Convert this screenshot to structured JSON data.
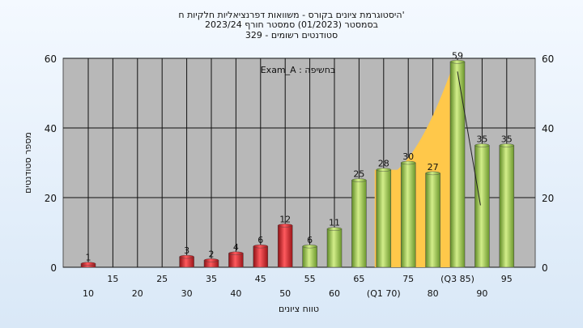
{
  "titles": [
    "'היסטוגרמת ציונים בקורס - משוואות דפרנציאליות חלקיות ח",
    "בסמסטר  (01/2023)  סמסטר חורף 2023/24",
    "סטודנטים רשומים - 329"
  ],
  "chart_data": {
    "type": "bar",
    "xlabel": "טווח ציונים",
    "ylabel": "מספר סטודנטים",
    "annotation": "בחשיפה : Exam_A",
    "ylim": [
      0,
      60
    ],
    "y_ticks": [
      "0",
      "20",
      "40",
      "60"
    ],
    "categories": [
      "10",
      "15",
      "20",
      "25",
      "30",
      "35",
      "40",
      "45",
      "50",
      "55",
      "60",
      "65",
      "(Q1 70)",
      "75",
      "80",
      "(Q3 85)",
      "90",
      "95"
    ],
    "values": [
      1,
      0,
      0,
      0,
      3,
      2,
      4,
      6,
      12,
      6,
      11,
      25,
      28,
      30,
      27,
      59,
      35,
      35
    ],
    "bar_colors": [
      "red",
      "red",
      "red",
      "red",
      "red",
      "red",
      "red",
      "red",
      "red",
      "green",
      "green",
      "green",
      "green",
      "green",
      "green",
      "green",
      "green",
      "green"
    ],
    "highlight_area": {
      "from": "(Q1 70)",
      "to": "(Q3 85)",
      "color": "#ffc84a"
    },
    "grid": true,
    "colors": {
      "red": "#d9262c",
      "green": "#9ac251",
      "plot_bg": "#b8b8b8",
      "area": "#ffc84a"
    }
  }
}
